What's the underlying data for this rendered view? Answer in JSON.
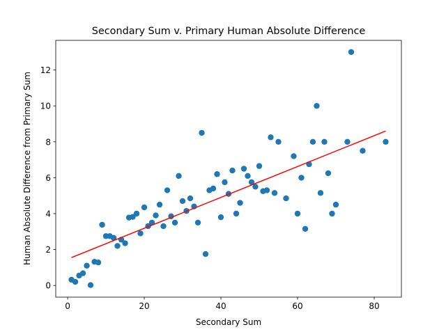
{
  "chart_data": {
    "type": "scatter",
    "title": "Secondary Sum v. Primary Human Absolute Difference",
    "xlabel": "Secondary Sum",
    "ylabel": "Human Absolute Difference from Primary Sum",
    "xlim": [
      -3.1,
      87.1
    ],
    "ylim": [
      -0.65,
      13.65
    ],
    "xticks": [
      0,
      20,
      40,
      60,
      80
    ],
    "yticks": [
      0,
      2,
      4,
      6,
      8,
      10,
      12
    ],
    "grid": false,
    "marker_color": "#1f77b4",
    "line_color": "#ff0000",
    "points": [
      [
        1,
        0.32
      ],
      [
        2,
        0.2
      ],
      [
        3,
        0.55
      ],
      [
        4,
        0.68
      ],
      [
        5,
        1.1
      ],
      [
        6,
        0.02
      ],
      [
        7,
        1.32
      ],
      [
        8,
        1.28
      ],
      [
        9,
        3.38
      ],
      [
        10,
        2.75
      ],
      [
        11,
        2.75
      ],
      [
        12,
        2.65
      ],
      [
        13,
        2.2
      ],
      [
        14,
        2.55
      ],
      [
        15,
        2.35
      ],
      [
        16,
        3.78
      ],
      [
        17,
        3.82
      ],
      [
        18,
        4.0
      ],
      [
        19,
        2.9
      ],
      [
        20,
        4.35
      ],
      [
        21,
        3.3
      ],
      [
        22,
        3.5
      ],
      [
        23,
        3.9
      ],
      [
        24,
        4.5
      ],
      [
        25,
        3.3
      ],
      [
        26,
        5.3
      ],
      [
        27,
        3.85
      ],
      [
        28,
        3.5
      ],
      [
        29,
        6.1
      ],
      [
        30,
        4.7
      ],
      [
        31,
        4.15
      ],
      [
        32,
        4.85
      ],
      [
        33,
        4.4
      ],
      [
        34,
        3.5
      ],
      [
        35,
        8.5
      ],
      [
        36,
        1.75
      ],
      [
        37,
        5.3
      ],
      [
        38,
        5.4
      ],
      [
        39,
        6.2
      ],
      [
        40,
        3.8
      ],
      [
        41,
        5.75
      ],
      [
        42,
        5.1
      ],
      [
        43,
        6.4
      ],
      [
        44,
        4.0
      ],
      [
        45,
        4.6
      ],
      [
        46,
        6.5
      ],
      [
        47,
        6.1
      ],
      [
        48,
        5.75
      ],
      [
        49,
        5.5
      ],
      [
        50,
        6.65
      ],
      [
        51,
        5.25
      ],
      [
        52,
        5.3
      ],
      [
        53,
        8.25
      ],
      [
        54,
        5.15
      ],
      [
        55,
        8.0
      ],
      [
        57,
        4.85
      ],
      [
        59,
        7.2
      ],
      [
        60,
        4.0
      ],
      [
        61,
        6.0
      ],
      [
        62,
        3.15
      ],
      [
        63,
        6.75
      ],
      [
        64,
        8.0
      ],
      [
        65,
        10.0
      ],
      [
        66,
        5.15
      ],
      [
        67,
        8.0
      ],
      [
        68,
        6.25
      ],
      [
        69,
        4.0
      ],
      [
        70,
        4.5
      ],
      [
        73,
        8.0
      ],
      [
        74,
        13.0
      ],
      [
        77,
        7.5
      ],
      [
        83,
        8.0
      ]
    ],
    "fit_line": {
      "x": [
        1,
        83
      ],
      "y": [
        1.55,
        8.6
      ]
    }
  }
}
